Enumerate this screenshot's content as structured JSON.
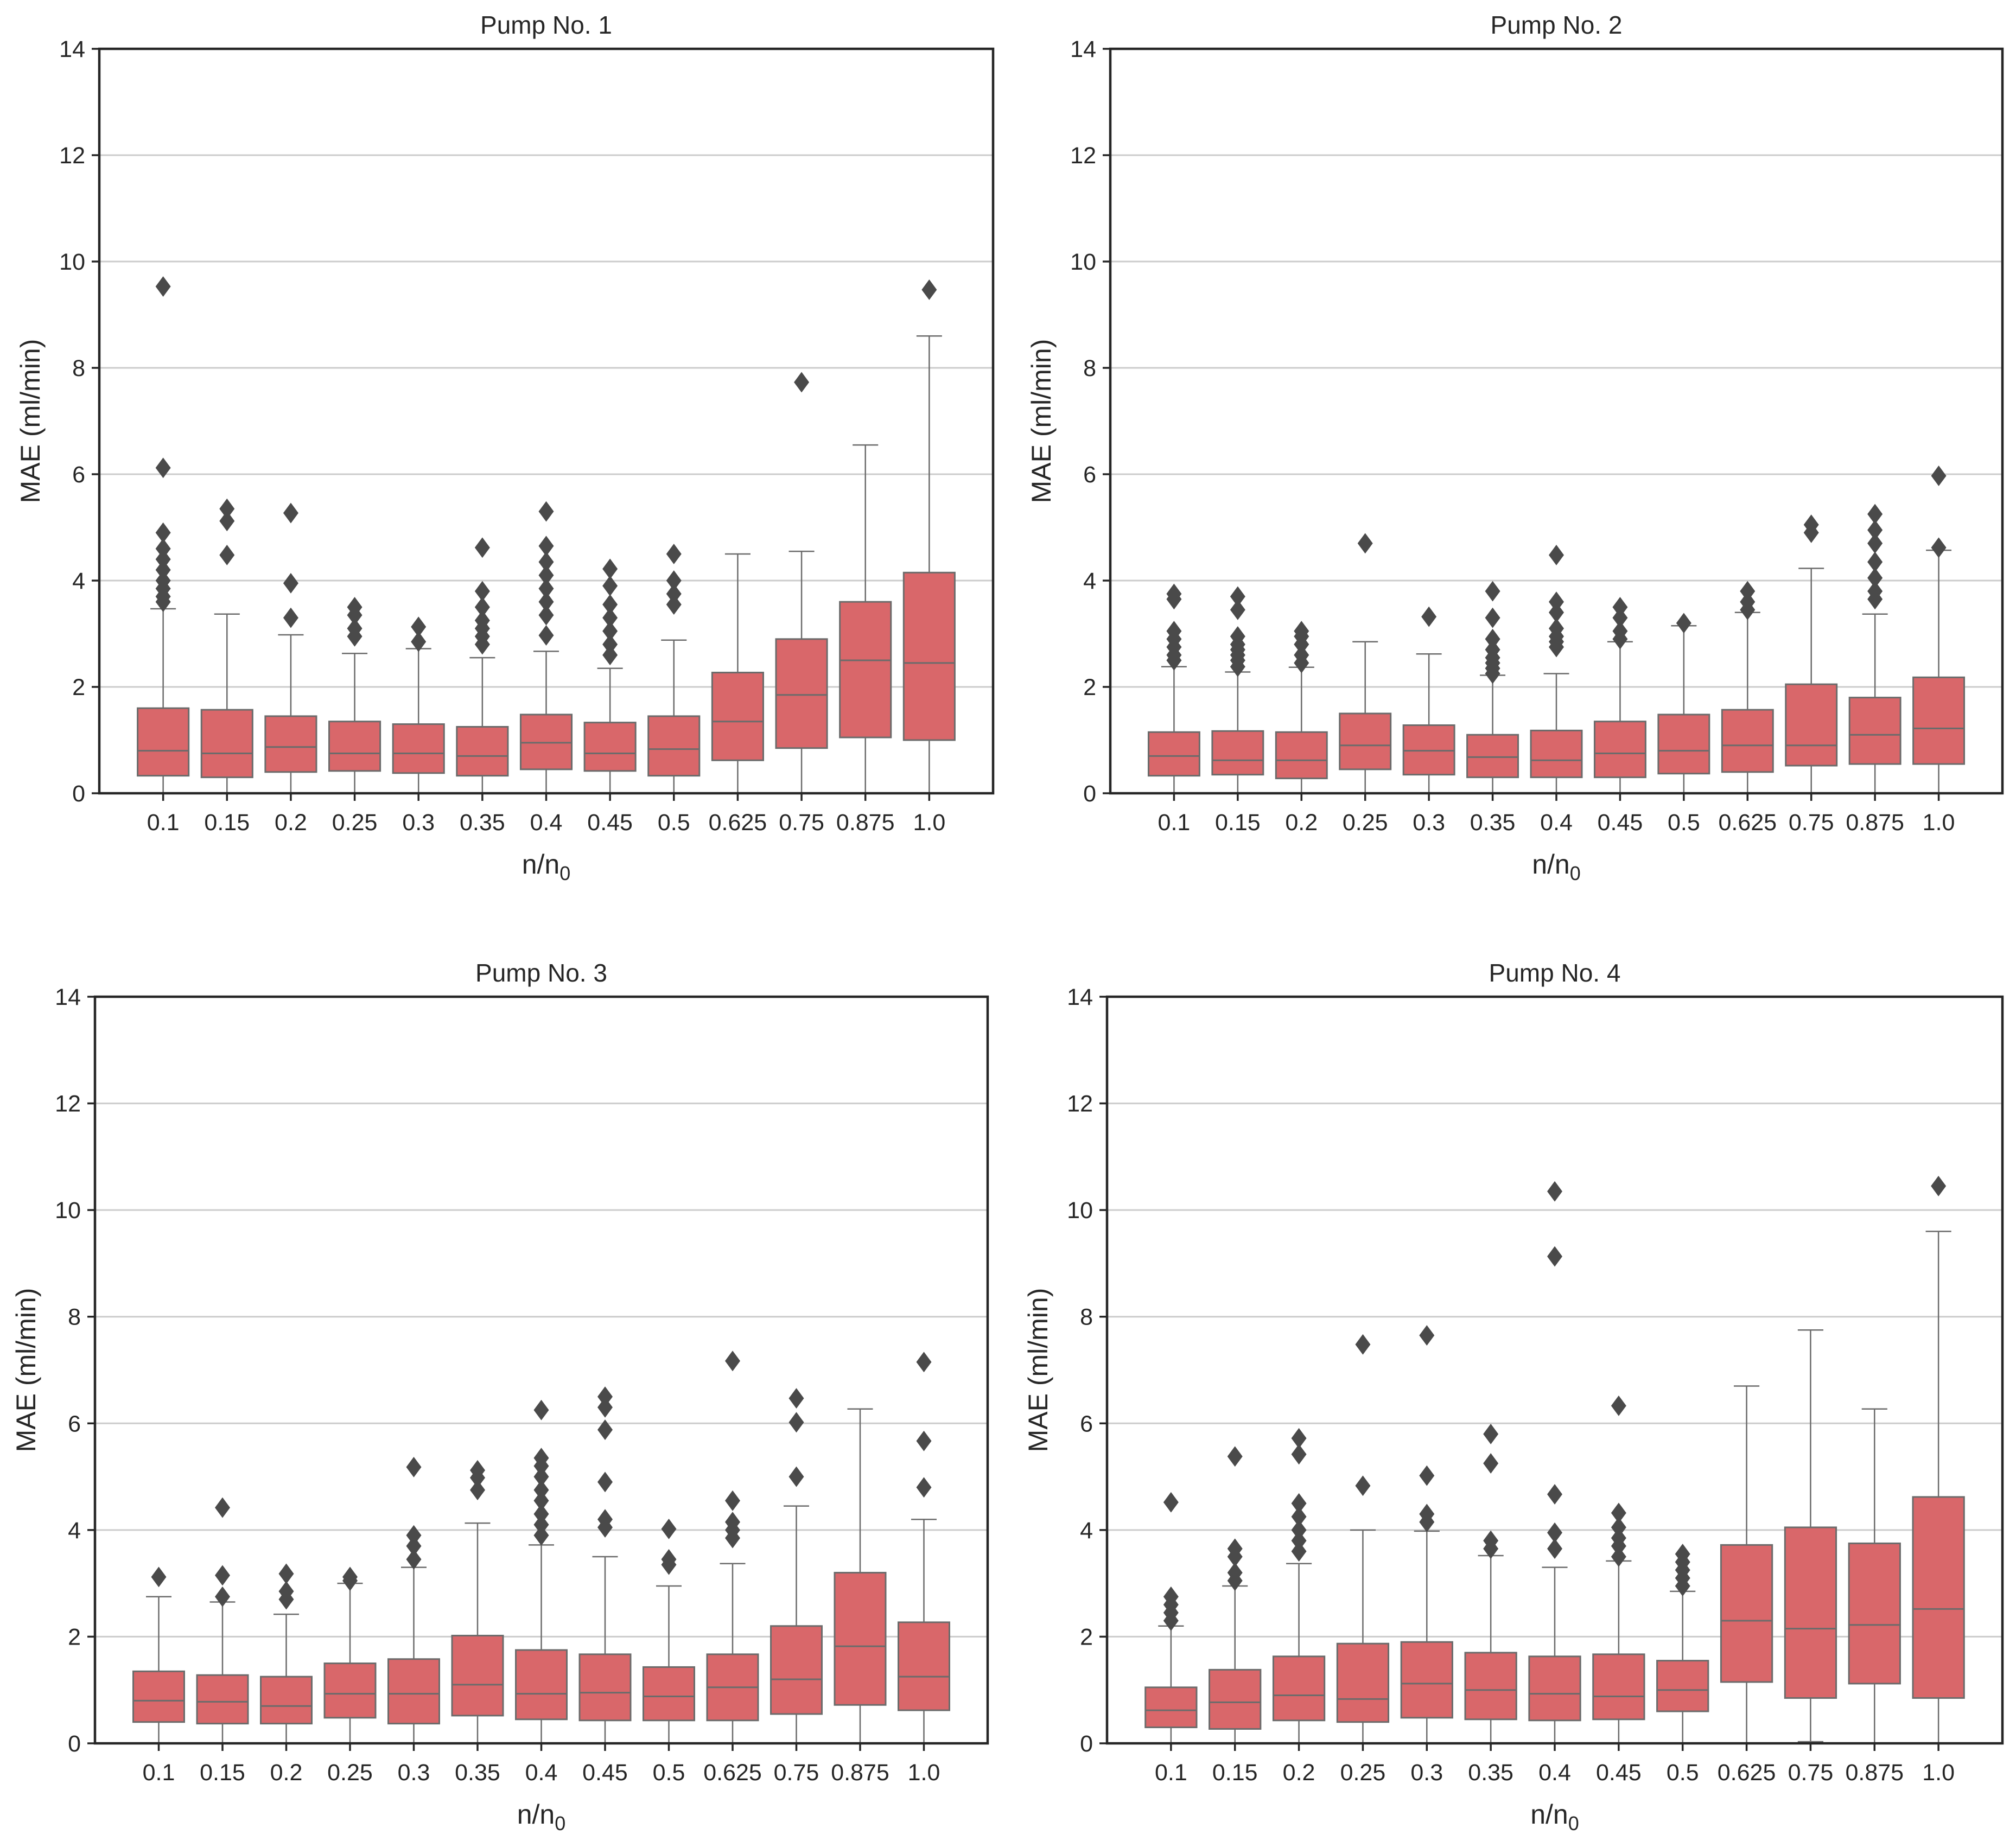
{
  "colors": {
    "box_fill": "#d9676a",
    "box_edge": "#6b6b6b",
    "flier": "#4a4a4a",
    "grid": "#cccccc",
    "axis": "#262626"
  },
  "chart_data": [
    {
      "type": "boxplot",
      "title": "Pump No. 1",
      "xlabel": "n/n0",
      "ylabel": "MAE (ml/min)",
      "ylim": [
        0,
        14
      ],
      "yticks": [
        "0",
        "2",
        "4",
        "6",
        "8",
        "10",
        "12",
        "14"
      ],
      "grid": "horizontal",
      "categories": [
        "0.1",
        "0.15",
        "0.2",
        "0.25",
        "0.3",
        "0.35",
        "0.4",
        "0.45",
        "0.5",
        "0.625",
        "0.75",
        "0.875",
        "1.0"
      ],
      "boxes": [
        {
          "min": 0,
          "q1": 0.33,
          "median": 0.8,
          "q3": 1.6,
          "max": 3.47,
          "fliers": [
            9.53,
            6.12,
            4.9,
            4.6,
            4.4,
            4.2,
            4.0,
            3.85,
            3.7,
            3.6
          ]
        },
        {
          "min": 0,
          "q1": 0.3,
          "median": 0.75,
          "q3": 1.57,
          "max": 3.37,
          "fliers": [
            5.35,
            5.12,
            4.48
          ]
        },
        {
          "min": 0,
          "q1": 0.4,
          "median": 0.87,
          "q3": 1.45,
          "max": 2.98,
          "fliers": [
            5.27,
            3.95,
            3.3
          ]
        },
        {
          "min": 0,
          "q1": 0.42,
          "median": 0.75,
          "q3": 1.35,
          "max": 2.63,
          "fliers": [
            3.5,
            3.35,
            3.1,
            2.95
          ]
        },
        {
          "min": 0,
          "q1": 0.38,
          "median": 0.75,
          "q3": 1.3,
          "max": 2.72,
          "fliers": [
            3.13,
            2.85
          ]
        },
        {
          "min": 0,
          "q1": 0.33,
          "median": 0.7,
          "q3": 1.25,
          "max": 2.55,
          "fliers": [
            4.62,
            3.8,
            3.5,
            3.25,
            3.1,
            2.95,
            2.8
          ]
        },
        {
          "min": 0,
          "q1": 0.45,
          "median": 0.95,
          "q3": 1.48,
          "max": 2.67,
          "fliers": [
            5.3,
            4.65,
            4.35,
            4.1,
            3.85,
            3.6,
            3.35,
            2.97
          ]
        },
        {
          "min": 0,
          "q1": 0.42,
          "median": 0.75,
          "q3": 1.33,
          "max": 2.35,
          "fliers": [
            4.22,
            3.9,
            3.55,
            3.3,
            3.05,
            2.8,
            2.6
          ]
        },
        {
          "min": 0,
          "q1": 0.33,
          "median": 0.83,
          "q3": 1.45,
          "max": 2.88,
          "fliers": [
            4.5,
            4.0,
            3.75,
            3.55
          ]
        },
        {
          "min": 0,
          "q1": 0.62,
          "median": 1.35,
          "q3": 2.27,
          "max": 4.5,
          "fliers": []
        },
        {
          "min": 0,
          "q1": 0.85,
          "median": 1.85,
          "q3": 2.9,
          "max": 4.55,
          "fliers": [
            7.73
          ]
        },
        {
          "min": 0,
          "q1": 1.05,
          "median": 2.5,
          "q3": 3.6,
          "max": 6.55,
          "fliers": []
        },
        {
          "min": 0,
          "q1": 1.0,
          "median": 2.45,
          "q3": 4.15,
          "max": 8.6,
          "fliers": [
            9.47
          ]
        }
      ]
    },
    {
      "type": "boxplot",
      "title": "Pump No. 2",
      "xlabel": "n/n0",
      "ylabel": "MAE (ml/min)",
      "ylim": [
        0,
        14
      ],
      "yticks": [
        "0",
        "2",
        "4",
        "6",
        "8",
        "10",
        "12",
        "14"
      ],
      "grid": "horizontal",
      "categories": [
        "0.1",
        "0.15",
        "0.2",
        "0.25",
        "0.3",
        "0.35",
        "0.4",
        "0.45",
        "0.5",
        "0.625",
        "0.75",
        "0.875",
        "1.0"
      ],
      "boxes": [
        {
          "min": 0,
          "q1": 0.33,
          "median": 0.7,
          "q3": 1.15,
          "max": 2.38,
          "fliers": [
            3.75,
            3.65,
            3.05,
            2.9,
            2.75,
            2.6,
            2.5
          ]
        },
        {
          "min": 0,
          "q1": 0.35,
          "median": 0.62,
          "q3": 1.17,
          "max": 2.28,
          "fliers": [
            3.7,
            3.45,
            2.95,
            2.8,
            2.7,
            2.6,
            2.5,
            2.38
          ]
        },
        {
          "min": 0,
          "q1": 0.28,
          "median": 0.62,
          "q3": 1.15,
          "max": 2.37,
          "fliers": [
            3.05,
            2.95,
            2.8,
            2.6,
            2.45
          ]
        },
        {
          "min": 0,
          "q1": 0.45,
          "median": 0.9,
          "q3": 1.5,
          "max": 2.85,
          "fliers": [
            4.7
          ]
        },
        {
          "min": 0,
          "q1": 0.35,
          "median": 0.8,
          "q3": 1.28,
          "max": 2.62,
          "fliers": [
            3.32
          ]
        },
        {
          "min": 0,
          "q1": 0.3,
          "median": 0.68,
          "q3": 1.1,
          "max": 2.22,
          "fliers": [
            3.8,
            3.3,
            2.9,
            2.7,
            2.55,
            2.45,
            2.35,
            2.25
          ]
        },
        {
          "min": 0,
          "q1": 0.3,
          "median": 0.62,
          "q3": 1.18,
          "max": 2.25,
          "fliers": [
            4.48,
            3.6,
            3.4,
            3.1,
            2.95,
            2.85,
            2.75
          ]
        },
        {
          "min": 0,
          "q1": 0.3,
          "median": 0.75,
          "q3": 1.35,
          "max": 2.85,
          "fliers": [
            3.5,
            3.3,
            3.05,
            2.9
          ]
        },
        {
          "min": 0,
          "q1": 0.37,
          "median": 0.8,
          "q3": 1.48,
          "max": 3.15,
          "fliers": [
            3.2
          ]
        },
        {
          "min": 0,
          "q1": 0.4,
          "median": 0.9,
          "q3": 1.57,
          "max": 3.4,
          "fliers": [
            3.8,
            3.6,
            3.45
          ]
        },
        {
          "min": 0,
          "q1": 0.52,
          "median": 0.9,
          "q3": 2.05,
          "max": 4.23,
          "fliers": [
            5.05,
            4.9
          ]
        },
        {
          "min": 0,
          "q1": 0.55,
          "median": 1.1,
          "q3": 1.8,
          "max": 3.37,
          "fliers": [
            5.25,
            4.95,
            4.7,
            4.35,
            4.05,
            3.8,
            3.65
          ]
        },
        {
          "min": 0,
          "q1": 0.55,
          "median": 1.22,
          "q3": 2.18,
          "max": 4.57,
          "fliers": [
            5.97,
            4.62
          ]
        }
      ]
    },
    {
      "type": "boxplot",
      "title": "Pump No. 3",
      "xlabel": "n/n0",
      "ylabel": "MAE (ml/min)",
      "ylim": [
        0,
        14
      ],
      "yticks": [
        "0",
        "2",
        "4",
        "6",
        "8",
        "10",
        "12",
        "14"
      ],
      "grid": "horizontal",
      "categories": [
        "0.1",
        "0.15",
        "0.2",
        "0.25",
        "0.3",
        "0.35",
        "0.4",
        "0.45",
        "0.5",
        "0.625",
        "0.75",
        "0.875",
        "1.0"
      ],
      "boxes": [
        {
          "min": 0,
          "q1": 0.4,
          "median": 0.8,
          "q3": 1.35,
          "max": 2.75,
          "fliers": [
            3.12
          ]
        },
        {
          "min": 0,
          "q1": 0.37,
          "median": 0.78,
          "q3": 1.28,
          "max": 2.65,
          "fliers": [
            4.42,
            3.15,
            2.75
          ]
        },
        {
          "min": 0,
          "q1": 0.37,
          "median": 0.7,
          "q3": 1.25,
          "max": 2.42,
          "fliers": [
            3.18,
            2.85,
            2.7
          ]
        },
        {
          "min": 0,
          "q1": 0.48,
          "median": 0.93,
          "q3": 1.5,
          "max": 3.0,
          "fliers": [
            3.12,
            3.05
          ]
        },
        {
          "min": 0,
          "q1": 0.37,
          "median": 0.93,
          "q3": 1.58,
          "max": 3.3,
          "fliers": [
            5.18,
            3.9,
            3.7,
            3.45
          ]
        },
        {
          "min": 0,
          "q1": 0.52,
          "median": 1.1,
          "q3": 2.02,
          "max": 4.13,
          "fliers": [
            5.12,
            4.98,
            4.75
          ]
        },
        {
          "min": 0,
          "q1": 0.45,
          "median": 0.93,
          "q3": 1.75,
          "max": 3.72,
          "fliers": [
            6.25,
            5.35,
            5.2,
            5.0,
            4.75,
            4.55,
            4.3,
            4.1,
            3.9
          ]
        },
        {
          "min": 0,
          "q1": 0.43,
          "median": 0.95,
          "q3": 1.67,
          "max": 3.5,
          "fliers": [
            6.5,
            6.3,
            5.88,
            4.9,
            4.2,
            4.05
          ]
        },
        {
          "min": 0,
          "q1": 0.43,
          "median": 0.88,
          "q3": 1.43,
          "max": 2.95,
          "fliers": [
            4.02,
            3.45,
            3.35
          ]
        },
        {
          "min": 0,
          "q1": 0.43,
          "median": 1.05,
          "q3": 1.67,
          "max": 3.37,
          "fliers": [
            7.17,
            4.55,
            4.15,
            4.0,
            3.85
          ]
        },
        {
          "min": 0,
          "q1": 0.55,
          "median": 1.2,
          "q3": 2.2,
          "max": 4.45,
          "fliers": [
            6.47,
            6.02,
            5.0
          ]
        },
        {
          "min": 0,
          "q1": 0.72,
          "median": 1.82,
          "q3": 3.2,
          "max": 6.27,
          "fliers": []
        },
        {
          "min": 0,
          "q1": 0.62,
          "median": 1.25,
          "q3": 2.27,
          "max": 4.2,
          "fliers": [
            7.15,
            5.67,
            4.8
          ]
        }
      ]
    },
    {
      "type": "boxplot",
      "title": "Pump No. 4",
      "xlabel": "n/n0",
      "ylabel": "MAE (ml/min)",
      "ylim": [
        0,
        14
      ],
      "yticks": [
        "0",
        "2",
        "4",
        "6",
        "8",
        "10",
        "12",
        "14"
      ],
      "grid": "horizontal",
      "categories": [
        "0.1",
        "0.15",
        "0.2",
        "0.25",
        "0.3",
        "0.35",
        "0.4",
        "0.45",
        "0.5",
        "0.625",
        "0.75",
        "0.875",
        "1.0"
      ],
      "boxes": [
        {
          "min": 0,
          "q1": 0.3,
          "median": 0.62,
          "q3": 1.05,
          "max": 2.2,
          "fliers": [
            4.52,
            2.75,
            2.6,
            2.45,
            2.3
          ]
        },
        {
          "min": 0,
          "q1": 0.27,
          "median": 0.77,
          "q3": 1.38,
          "max": 2.95,
          "fliers": [
            5.38,
            3.65,
            3.5,
            3.2,
            3.05
          ]
        },
        {
          "min": 0,
          "q1": 0.43,
          "median": 0.9,
          "q3": 1.63,
          "max": 3.37,
          "fliers": [
            5.72,
            5.42,
            4.5,
            4.25,
            4.0,
            3.8,
            3.6
          ]
        },
        {
          "min": 0,
          "q1": 0.4,
          "median": 0.83,
          "q3": 1.87,
          "max": 4.0,
          "fliers": [
            7.48,
            4.83
          ]
        },
        {
          "min": 0,
          "q1": 0.48,
          "median": 1.12,
          "q3": 1.9,
          "max": 3.98,
          "fliers": [
            7.65,
            5.02,
            4.3,
            4.15
          ]
        },
        {
          "min": 0,
          "q1": 0.45,
          "median": 1.0,
          "q3": 1.7,
          "max": 3.52,
          "fliers": [
            5.8,
            5.25,
            3.8,
            3.65
          ]
        },
        {
          "min": 0,
          "q1": 0.43,
          "median": 0.93,
          "q3": 1.63,
          "max": 3.3,
          "fliers": [
            10.35,
            9.13,
            4.67,
            3.95,
            3.65
          ]
        },
        {
          "min": 0,
          "q1": 0.45,
          "median": 0.88,
          "q3": 1.67,
          "max": 3.42,
          "fliers": [
            6.33,
            4.32,
            4.05,
            3.85,
            3.7,
            3.5
          ]
        },
        {
          "min": 0,
          "q1": 0.6,
          "median": 1.0,
          "q3": 1.55,
          "max": 2.85,
          "fliers": [
            3.55,
            3.4,
            3.25,
            3.1,
            2.95
          ]
        },
        {
          "min": 0,
          "q1": 1.15,
          "median": 2.3,
          "q3": 3.72,
          "max": 6.7,
          "fliers": []
        },
        {
          "min": 0.03,
          "q1": 0.85,
          "median": 2.15,
          "q3": 4.05,
          "max": 7.75,
          "fliers": []
        },
        {
          "min": 0,
          "q1": 1.12,
          "median": 2.22,
          "q3": 3.75,
          "max": 6.27,
          "fliers": []
        },
        {
          "min": 0,
          "q1": 0.85,
          "median": 2.52,
          "q3": 4.62,
          "max": 9.6,
          "fliers": [
            10.45
          ]
        }
      ]
    }
  ]
}
